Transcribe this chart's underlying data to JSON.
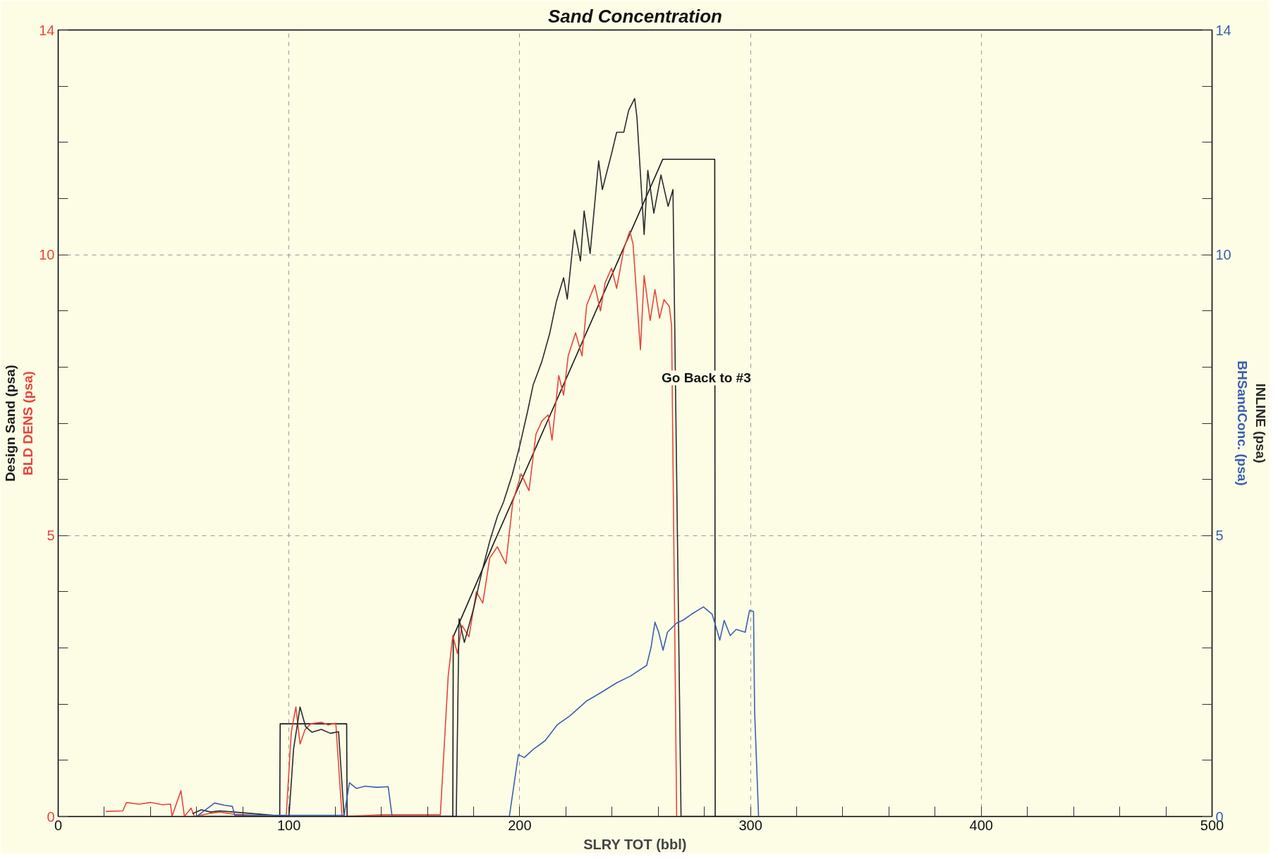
{
  "chart_data": {
    "type": "line",
    "title": "Sand Concentration",
    "xlabel": "SLRY TOT (bbl)",
    "xlim": [
      0,
      500
    ],
    "ylim": [
      0,
      14
    ],
    "y2lim": [
      0,
      14
    ],
    "xticks": [
      0,
      {
        "value": 20,
        "label": null
      },
      {
        "value": 40,
        "label": null
      },
      {
        "value": 60,
        "label": null
      },
      {
        "value": 80,
        "label": null
      },
      100,
      {
        "value": 120,
        "label": null
      },
      {
        "value": 140,
        "label": null
      },
      {
        "value": 160,
        "label": null
      },
      {
        "value": 180,
        "label": null
      },
      200,
      {
        "value": 220,
        "label": null
      },
      {
        "value": 240,
        "label": null
      },
      {
        "value": 260,
        "label": null
      },
      {
        "value": 280,
        "label": null
      },
      300,
      {
        "value": 320,
        "label": null
      },
      {
        "value": 340,
        "label": null
      },
      {
        "value": 360,
        "label": null
      },
      {
        "value": 380,
        "label": null
      },
      400,
      {
        "value": 420,
        "label": null
      },
      {
        "value": 440,
        "label": null
      },
      {
        "value": 460,
        "label": null
      },
      {
        "value": 480,
        "label": null
      },
      500
    ],
    "yticks": [
      0,
      {
        "value": 1,
        "label": null
      },
      {
        "value": 2,
        "label": null
      },
      {
        "value": 3,
        "label": null
      },
      {
        "value": 4,
        "label": null
      },
      5,
      {
        "value": 6,
        "label": null
      },
      {
        "value": 7,
        "label": null
      },
      {
        "value": 8,
        "label": null
      },
      {
        "value": 9,
        "label": null
      },
      10,
      {
        "value": 11,
        "label": null
      },
      {
        "value": 12,
        "label": null
      },
      {
        "value": 13,
        "label": null
      },
      14
    ],
    "y2ticks": [
      0,
      {
        "value": 1,
        "label": null
      },
      {
        "value": 2,
        "label": null
      },
      {
        "value": 3,
        "label": null
      },
      {
        "value": 4,
        "label": null
      },
      5,
      {
        "value": 6,
        "label": null
      },
      {
        "value": 7,
        "label": null
      },
      {
        "value": 8,
        "label": null
      },
      {
        "value": 9,
        "label": null
      },
      10,
      {
        "value": 11,
        "label": null
      },
      {
        "value": 12,
        "label": null
      },
      {
        "value": 13,
        "label": null
      },
      14
    ],
    "grid": true,
    "legend": false,
    "marker": "none",
    "line_style": "solid",
    "annotations": [
      {
        "text": "Go Back to #3",
        "x": 252.3,
        "y": 8.31
      }
    ],
    "series": [
      {
        "name": "Design Sand (psa)",
        "color": "#1a1a1a",
        "axis": "y",
        "x": [
          60,
          96,
          96.2,
          125,
          125.2,
          171,
          171.2,
          188.8,
          243,
          262,
          284.5,
          284.7,
          300
        ],
        "values": [
          0,
          0,
          1.65,
          1.65,
          0,
          0,
          3.2,
          4.87,
          9.93,
          11.7,
          11.7,
          0,
          0
        ]
      },
      {
        "name": "BLD DENS (psa)",
        "color": "#e8463a",
        "axis": "y",
        "x": [
          20.6,
          28,
          29.6,
          35,
          40,
          45,
          48.7,
          49.3,
          53.2,
          54.7,
          57.6,
          59,
          65,
          70,
          76,
          98.8,
          101,
          103,
          104.8,
          107,
          109.5,
          114,
          117,
          120.3,
          123,
          140,
          165.6,
          169,
          171,
          173,
          175,
          178,
          181.2,
          184,
          187,
          190.3,
          194,
          197,
          200.6,
          204,
          207,
          209.6,
          212.3,
          214,
          216.9,
          219,
          221,
          224.2,
          227,
          229,
          232.5,
          235,
          237,
          239.8,
          242,
          245.1,
          247.7,
          249.1,
          252.3,
          253.9,
          256.5,
          258.6,
          260.6,
          262.5,
          264.8,
          265.8,
          268
        ],
        "values": [
          0.09,
          0.1,
          0.25,
          0.22,
          0.25,
          0.21,
          0.22,
          0,
          0.46,
          0,
          0.15,
          0,
          0.05,
          0.08,
          0.04,
          0,
          1.5,
          1.95,
          1.29,
          1.55,
          1.65,
          1.68,
          1.63,
          1.66,
          0,
          0.03,
          0.03,
          2.5,
          3.22,
          2.9,
          3.4,
          3.2,
          4.0,
          3.8,
          4.6,
          4.8,
          4.5,
          5.6,
          6.1,
          5.8,
          6.8,
          7.04,
          7.15,
          6.7,
          7.85,
          7.5,
          8.2,
          8.61,
          8.2,
          9.1,
          9.46,
          9.0,
          9.5,
          9.76,
          9.4,
          10.1,
          10.42,
          10.19,
          8.31,
          9.63,
          8.83,
          9.38,
          8.87,
          9.2,
          9.08,
          8.74,
          0
        ]
      },
      {
        "name": "INLINE (psa)",
        "color": "#2a2a2a",
        "axis": "y2",
        "x": [
          58.2,
          62,
          66,
          70,
          76,
          100,
          102,
          104.8,
          107.2,
          110,
          114,
          118,
          121.5,
          123.9,
          172.5,
          173.7,
          176,
          180,
          183.8,
          187,
          190.3,
          193,
          196.8,
          200,
          203.4,
          205.8,
          209.6,
          213,
          215.9,
          219,
          220.6,
          223.7,
          226.3,
          227.9,
          230.5,
          234.2,
          235.8,
          239.8,
          242,
          245.1,
          247.2,
          249.8,
          250.8,
          252.9,
          253.9,
          255.5,
          258.1,
          261.2,
          264.3,
          266.4,
          269.9,
          285
        ],
        "values": [
          0.05,
          0.12,
          0.08,
          0.1,
          0.08,
          0,
          1.2,
          1.95,
          1.6,
          1.5,
          1.55,
          1.48,
          1.51,
          0,
          0,
          3.52,
          3.1,
          3.7,
          4.39,
          4.9,
          5.34,
          5.6,
          6.09,
          6.6,
          7.21,
          7.68,
          8.1,
          8.6,
          9.17,
          9.59,
          9.21,
          10.44,
          9.89,
          10.78,
          10.02,
          11.67,
          11.16,
          11.8,
          12.18,
          12.18,
          12.57,
          12.78,
          12.44,
          11.04,
          10.36,
          11.5,
          10.74,
          11.42,
          10.86,
          11.16,
          0,
          0
        ]
      },
      {
        "name": "BHSandConc. (psa)",
        "color": "#3a5fb0",
        "axis": "y2",
        "x": [
          60,
          67.8,
          72,
          75.5,
          76.5,
          123.9,
          126.2,
          129.2,
          133,
          138,
          143,
          144.7,
          195.5,
          199.4,
          202,
          206,
          211,
          216.2,
          222,
          229.1,
          235,
          242,
          248,
          255,
          256.9,
          258.6,
          260.2,
          262.1,
          264,
          267.9,
          271,
          274.4,
          279.6,
          283.4,
          286.7,
          288.6,
          291.2,
          293.8,
          297.7,
          299.6,
          301.3,
          301.8,
          303.5
        ],
        "values": [
          0,
          0.24,
          0.2,
          0.18,
          0.02,
          0.02,
          0.6,
          0.5,
          0.54,
          0.52,
          0.53,
          0,
          0,
          1.1,
          1.05,
          1.2,
          1.35,
          1.63,
          1.8,
          2.06,
          2.2,
          2.38,
          2.5,
          2.69,
          3.01,
          3.46,
          3.28,
          2.96,
          3.28,
          3.44,
          3.5,
          3.6,
          3.73,
          3.6,
          3.14,
          3.49,
          3.22,
          3.33,
          3.28,
          3.67,
          3.65,
          1.85,
          0
        ]
      }
    ]
  }
}
